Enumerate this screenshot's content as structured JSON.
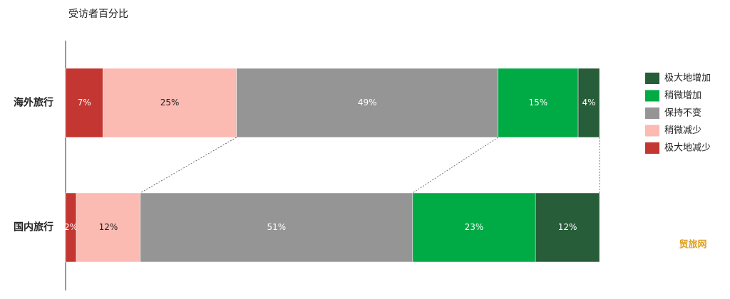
{
  "chart_data": {
    "type": "stacked-bar-horizontal",
    "title": "受访者百分比",
    "categories": [
      "海外旅行",
      "国内旅行"
    ],
    "xlim": [
      0,
      100
    ],
    "series": [
      {
        "name": "极大地减少",
        "color": "#c33631",
        "values": [
          7,
          2
        ],
        "value_labels": [
          "7%",
          "2%"
        ]
      },
      {
        "name": "稍微减少",
        "color": "#fbbab2",
        "values": [
          25,
          12
        ],
        "value_labels": [
          "25%",
          "12%"
        ]
      },
      {
        "name": "保持不变",
        "color": "#959595",
        "values": [
          49,
          51
        ],
        "value_labels": [
          "49%",
          "51%"
        ]
      },
      {
        "name": "稍微增加",
        "color": "#00aa45",
        "values": [
          15,
          23
        ],
        "value_labels": [
          "15%",
          "23%"
        ]
      },
      {
        "name": "极大地增加",
        "color": "#275d39",
        "values": [
          4,
          12
        ],
        "value_labels": [
          "4%",
          "12%"
        ]
      }
    ],
    "legend": "right",
    "watermark": "贸旅网"
  }
}
